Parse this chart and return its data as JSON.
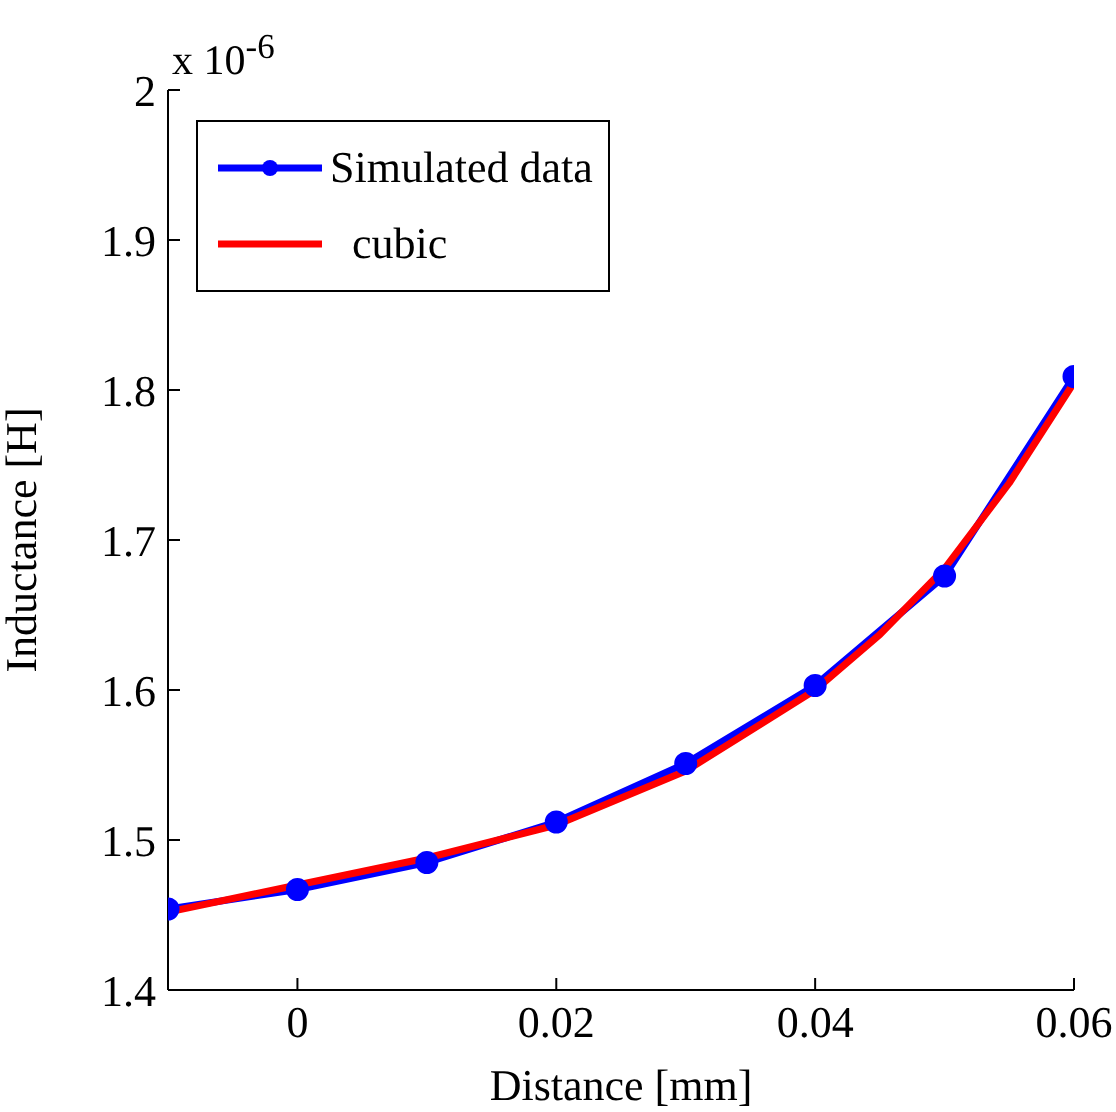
{
  "chart_data": {
    "type": "line",
    "xlabel": "Distance [mm]",
    "ylabel": "Inductance [H]",
    "annotations": [
      "x 10$^{-6}$"
    ],
    "xlim": [
      -0.01,
      0.06
    ],
    "xticks": [
      0,
      0.02,
      0.04,
      0.06
    ],
    "ylim": [
      1.4,
      2
    ],
    "yticks": [
      1.4,
      1.5,
      1.6,
      1.7,
      1.8,
      1.9,
      2
    ],
    "grid": false,
    "legend": "top left",
    "series": [
      {
        "name": "Simulated data",
        "color": "#0000ff",
        "marker": "circle",
        "x": [
          -0.01,
          0,
          0.01,
          0.02,
          0.03,
          0.04,
          0.05,
          0.06
        ],
        "values": [
          1.454,
          1.467,
          1.485,
          1.512,
          1.551,
          1.603,
          1.676,
          1.809
        ]
      },
      {
        "name": "  cubic",
        "color": "#ff0000",
        "marker": "none",
        "x": [
          -0.01,
          0,
          0.01,
          0.02,
          0.03,
          0.04,
          0.045,
          0.05,
          0.055,
          0.06
        ],
        "values": [
          1.452,
          1.47,
          1.488,
          1.51,
          1.546,
          1.6,
          1.637,
          1.681,
          1.738,
          1.805
        ]
      }
    ]
  }
}
